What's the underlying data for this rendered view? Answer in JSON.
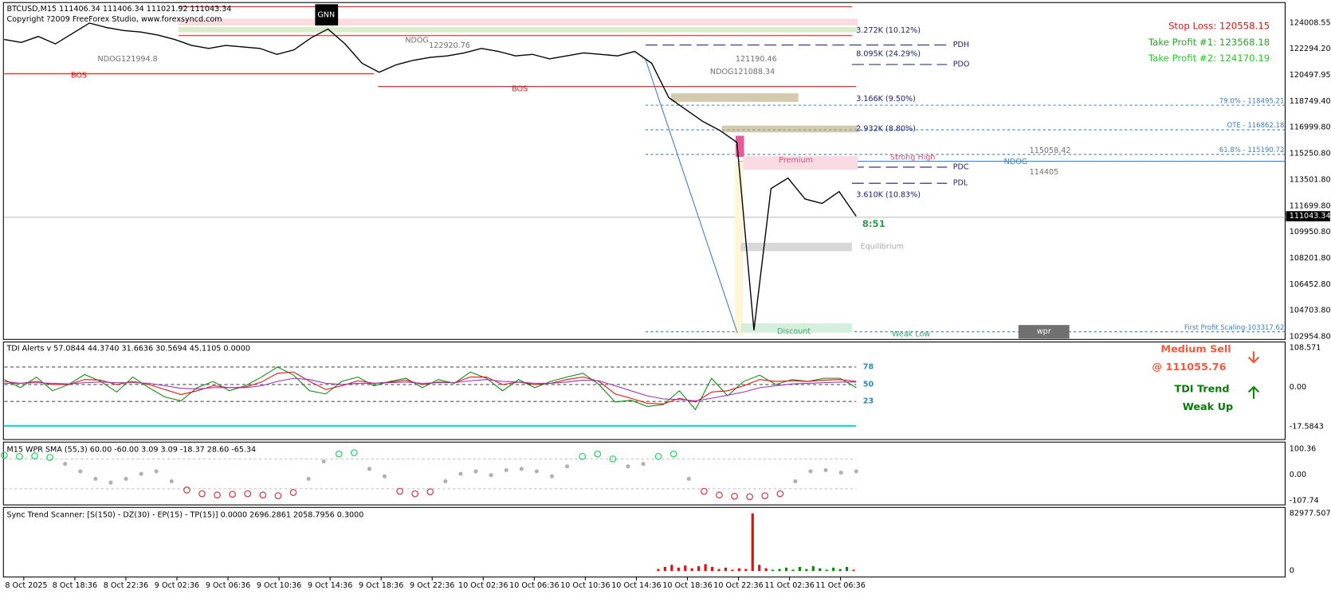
{
  "header": {
    "symbol": "BTCUSD,M15  111406.34 111406.34 111021.92 111043.34",
    "copyright": "Copyright ?2009 FreeForex Studio, www.forexsyncd.com",
    "badge": "GNN"
  },
  "signals": {
    "stop_loss": "Stop Loss: 120558.15",
    "take_profit_1": "Take Profit #1: 123568.18",
    "take_profit_2": "Take Profit #2: 124170.19"
  },
  "price_axis": {
    "ticks": [
      "124008.55",
      "122294.20",
      "120497.95",
      "118749.40",
      "116999.80",
      "115250.80",
      "113501.80",
      "111699.80",
      "109950.80",
      "108201.80",
      "106452.80",
      "104703.80",
      "102954.80"
    ],
    "current": "111043.34"
  },
  "price": {
    "values": [
      122900,
      122700,
      123100,
      122600,
      123300,
      124000,
      123700,
      123500,
      123400,
      123200,
      122900,
      122500,
      122300,
      122500,
      122400,
      122300,
      121900,
      122200,
      123000,
      123600,
      122600,
      121300,
      120700,
      121200,
      121500,
      121700,
      121800,
      122000,
      122300,
      122100,
      121800,
      121900,
      121600,
      121800,
      122000,
      121900,
      121800,
      122100,
      121300,
      119000,
      118200,
      117400,
      116800,
      116000,
      103400,
      112900,
      113600,
      112200,
      111900,
      112700,
      111043.34
    ],
    "color": "#000000"
  },
  "levels": {
    "range_1": "3.272K (10.12%)",
    "range_2": "8.095K (24.29%)",
    "range_3": "3.166K (9.50%)",
    "range_4": "2.932K (8.80%)",
    "range_5": "3.610K (10.83%)",
    "pdh": "PDH",
    "pdo": "PDO",
    "pdc": "PDC",
    "pdl": "PDL",
    "ndog_1": "NDOG121994.8",
    "ndog_2": "NDOG",
    "ndog_2_price": "122920.76",
    "ndog_3": "NDOG121088.34",
    "price_1": "121190.46",
    "price_2": "115058.42",
    "ndog_4": "NDOG",
    "price_3": "114405",
    "fib_79": "79.0% - 118495.21",
    "ote": "OTE - 116862.18",
    "fib_618": "61.8% - 115190.72",
    "first_profit": "First Profit Scaling-103317.62",
    "premium": "Premium",
    "strong_high": "Strong High",
    "equilibrium": "Equilibrium",
    "discount": "Discount",
    "weak_low": "Weak Low",
    "wpr_button": "wpr",
    "timer": "8:51",
    "bos_1": "BOS",
    "bos_2": "BOS"
  },
  "tdi": {
    "title": "TDI Alerts v 57.0844 44.3740 31.6636 30.5694 45.1105 0.0000",
    "ticks": [
      "108.571",
      "0.00",
      "-17.5843"
    ],
    "levels": [
      78,
      50,
      23
    ],
    "signal": "Medium Sell",
    "signal_price": "@ 111055.76",
    "trend_label": "TDI Trend",
    "trend_value": "Weak Up",
    "series": [
      {
        "color": "#0a8a0a",
        "values": [
          58,
          45,
          62,
          40,
          50,
          66,
          55,
          38,
          62,
          45,
          30,
          24,
          45,
          55,
          40,
          48,
          62,
          78,
          65,
          40,
          35,
          55,
          62,
          48,
          55,
          60,
          45,
          58,
          52,
          70,
          60,
          40,
          58,
          45,
          55,
          62,
          68,
          50,
          22,
          25,
          15,
          18,
          40,
          10,
          60,
          32,
          55,
          65,
          50,
          58,
          55,
          60,
          60,
          45
        ]
      },
      {
        "color": "#e01010",
        "values": [
          55,
          52,
          55,
          50,
          50,
          58,
          57,
          50,
          55,
          50,
          42,
          34,
          40,
          48,
          45,
          46,
          54,
          68,
          70,
          55,
          42,
          48,
          56,
          52,
          54,
          57,
          50,
          54,
          53,
          62,
          62,
          50,
          54,
          50,
          52,
          58,
          62,
          55,
          35,
          28,
          20,
          19,
          28,
          22,
          38,
          40,
          48,
          58,
          55,
          56,
          55,
          57,
          58,
          55
        ]
      },
      {
        "color": "#9b2fc6",
        "values": [
          52,
          52,
          53,
          52,
          51,
          53,
          54,
          53,
          53,
          52,
          48,
          44,
          43,
          45,
          45,
          45,
          48,
          55,
          60,
          58,
          52,
          50,
          52,
          52,
          53,
          54,
          52,
          53,
          53,
          56,
          58,
          55,
          54,
          52,
          52,
          54,
          57,
          56,
          48,
          40,
          32,
          27,
          26,
          24,
          28,
          33,
          38,
          45,
          48,
          51,
          52,
          53,
          54,
          54
        ]
      }
    ]
  },
  "wpr": {
    "title": "M15 WPR  SMA (55,3) 60.00 -60.00 3.09 3.09 -18.37 28.60 -65.34",
    "ticks": [
      "100.36",
      "0.00",
      "-107.74"
    ],
    "levels": [
      60,
      -60
    ],
    "values": [
      75,
      70,
      72,
      66,
      40,
      10,
      -20,
      -35,
      -20,
      0,
      10,
      -30,
      -65,
      -80,
      -85,
      -82,
      -80,
      -85,
      -88,
      -75,
      -20,
      50,
      80,
      85,
      20,
      -10,
      -70,
      -80,
      -72,
      -30,
      0,
      10,
      -5,
      15,
      20,
      10,
      -10,
      30,
      70,
      80,
      60,
      30,
      40,
      70,
      80,
      -20,
      -70,
      -85,
      -90,
      -92,
      -88,
      -80,
      -30,
      10,
      15,
      5,
      10
    ]
  },
  "sync": {
    "title": "Sync Trend Scanner: [S(150) - DZ(30) - EP(15) - TP(15)] 0.0000 2696.2861 2058.7956 0.3000",
    "ticks": [
      "82977.5075",
      "0"
    ],
    "values": [
      3000,
      6000,
      9000,
      5000,
      8000,
      4000,
      7000,
      10000,
      6000,
      3000,
      5000,
      2000,
      4000,
      3000,
      82977.5075,
      9000,
      4000,
      2000,
      3000,
      5000,
      2000,
      6000,
      3000,
      7000,
      4000,
      2000,
      5000,
      3000,
      6000,
      2000
    ],
    "colors": [
      "#e01010",
      "#e01010",
      "#e01010",
      "#e01010",
      "#e01010",
      "#e01010",
      "#e01010",
      "#e01010",
      "#e01010",
      "#e01010",
      "#e01010",
      "#e01010",
      "#e01010",
      "#e01010",
      "#e01010",
      "#e01010",
      "#e01010",
      "#0a8a0a",
      "#0a8a0a",
      "#0a8a0a",
      "#0a8a0a",
      "#0a8a0a",
      "#0a8a0a",
      "#0a8a0a",
      "#0a8a0a",
      "#0a8a0a",
      "#0a8a0a",
      "#0a8a0a",
      "#0a8a0a",
      "#e01010"
    ]
  },
  "time_axis": [
    "8 Oct 2025",
    "8 Oct 18:36",
    "8 Oct 22:36",
    "9 Oct 02:36",
    "9 Oct 06:36",
    "9 Oct 10:36",
    "9 Oct 14:36",
    "9 Oct 18:36",
    "9 Oct 22:36",
    "10 Oct 02:36",
    "10 Oct 06:36",
    "10 Oct 10:36",
    "10 Oct 14:36",
    "10 Oct 18:36",
    "10 Oct 22:36",
    "11 Oct 02:36",
    "11 Oct 06:36"
  ]
}
